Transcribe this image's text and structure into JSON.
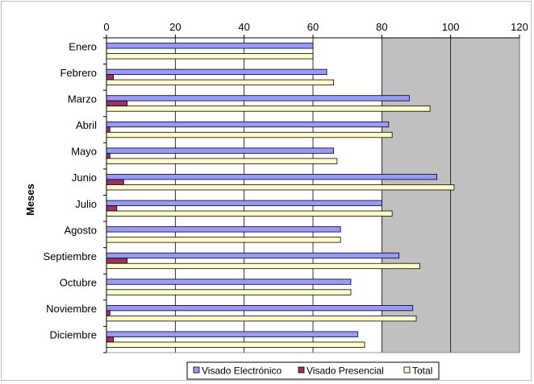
{
  "chart_data": {
    "type": "bar",
    "orientation": "horizontal",
    "title": "",
    "ylabel": "Meses",
    "xlabel": "",
    "xlim": [
      0,
      120
    ],
    "x_ticks": [
      "0",
      "20",
      "40",
      "60",
      "80",
      "100",
      "120"
    ],
    "categories": [
      "Enero",
      "Febrero",
      "Marzo",
      "Abril",
      "Mayo",
      "Junio",
      "Julio",
      "Agosto",
      "Septiembre",
      "Octubre",
      "Noviembre",
      "Diciembre"
    ],
    "series": [
      {
        "name": "Visado Electrónico",
        "color": "#9999ff",
        "values": [
          60,
          64,
          88,
          82,
          66,
          96,
          80,
          68,
          85,
          71,
          89,
          73
        ]
      },
      {
        "name": "Visado Presencial",
        "color": "#993366",
        "values": [
          0,
          2,
          6,
          1,
          1,
          5,
          3,
          0,
          6,
          0,
          1,
          2
        ]
      },
      {
        "name": "Total",
        "color": "#ffffcc",
        "values": [
          60,
          66,
          94,
          83,
          67,
          101,
          83,
          68,
          91,
          71,
          90,
          75
        ]
      }
    ],
    "grid": true,
    "axis_position": "top",
    "legend_position": "bottom",
    "plot_background_shaded_from": 80
  }
}
